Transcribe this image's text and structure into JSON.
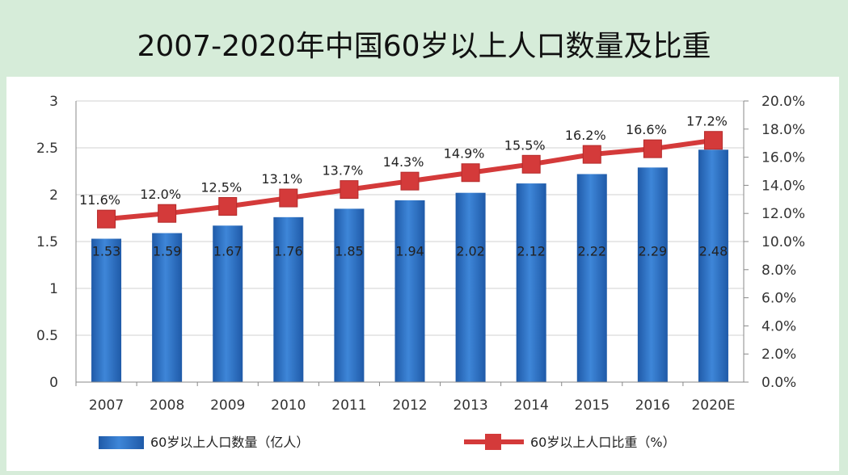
{
  "title": "2007-2020年中国60岁以上人口数量及比重",
  "chart_data": {
    "type": "bar",
    "title": "2007-2020年中国60岁以上人口数量及比重",
    "categories": [
      "2007",
      "2008",
      "2009",
      "2010",
      "2011",
      "2012",
      "2013",
      "2014",
      "2015",
      "2016",
      "2020E"
    ],
    "series": [
      {
        "name": "60岁以上人口数量（亿人）",
        "type": "bar",
        "axis": "left",
        "values": [
          1.53,
          1.59,
          1.67,
          1.76,
          1.85,
          1.94,
          2.02,
          2.12,
          2.22,
          2.29,
          2.48
        ],
        "labels": [
          "1.53",
          "1.59",
          "1.67",
          "1.76",
          "1.85",
          "1.94",
          "2.02",
          "2.12",
          "2.22",
          "2.29",
          "2.48"
        ],
        "color": "#2f6fc0"
      },
      {
        "name": "60岁以上人口比重（%）",
        "type": "line",
        "axis": "right",
        "values": [
          11.6,
          12.0,
          12.5,
          13.1,
          13.7,
          14.3,
          14.9,
          15.5,
          16.2,
          16.6,
          17.2
        ],
        "labels": [
          "11.6%",
          "12.0%",
          "12.5%",
          "13.1%",
          "13.7%",
          "14.3%",
          "14.9%",
          "15.5%",
          "16.2%",
          "16.6%",
          "17.2%"
        ],
        "color": "#d43a3a"
      }
    ],
    "y_left": {
      "ylim": [
        0,
        3
      ],
      "ticks": [
        "0",
        "0.5",
        "1",
        "1.5",
        "2",
        "2.5",
        "3"
      ]
    },
    "y_right": {
      "ylim": [
        0,
        20
      ],
      "ticks": [
        "0.0%",
        "2.0%",
        "4.0%",
        "6.0%",
        "8.0%",
        "10.0%",
        "12.0%",
        "14.0%",
        "16.0%",
        "18.0%",
        "20.0%"
      ]
    },
    "grid": true,
    "legend_position": "bottom",
    "legend": [
      {
        "label": "60岁以上人口数量（亿人）",
        "marker": "bar"
      },
      {
        "label": "60岁以上人口比重（%）",
        "marker": "line-square"
      }
    ]
  }
}
